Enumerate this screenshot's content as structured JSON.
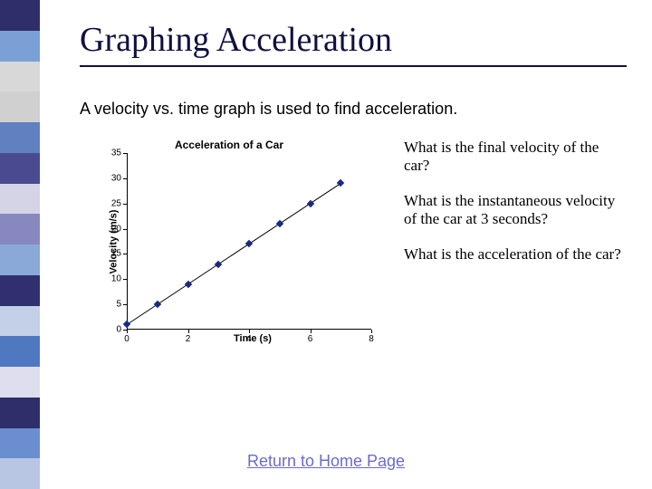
{
  "sidebar_colors": [
    "#2e2e6a",
    "#7aa0d6",
    "#d8d8d8",
    "#d0d0d0",
    "#6080c0",
    "#4a4a90",
    "#d4d4e6",
    "#8888c0",
    "#8aa8d8",
    "#303070",
    "#c4cfe8",
    "#5078c0",
    "#dedeee",
    "#2e2e6a",
    "#6a8ed0",
    "#b8c6e4"
  ],
  "title": "Graphing Acceleration",
  "subtitle": "A velocity vs. time graph is used to find acceleration.",
  "questions": [
    "What is the final velocity of the car?",
    "What is the instantaneous velocity of the car at 3 seconds?",
    "What is the acceleration of the car?"
  ],
  "home_link": "Return to Home Page",
  "chart": {
    "type": "scatter-line",
    "title": "Acceleration of a Car",
    "xlabel": "Time (s)",
    "ylabel": "Velocity (m/s)",
    "xlim": [
      0,
      8
    ],
    "ylim": [
      0,
      35
    ],
    "xticks": [
      0,
      2,
      4,
      6,
      8
    ],
    "yticks": [
      0,
      5,
      10,
      15,
      20,
      25,
      30,
      35
    ],
    "data_x": [
      0,
      1,
      2,
      3,
      4,
      5,
      6,
      7
    ],
    "data_y": [
      1,
      5,
      9,
      13,
      17,
      21,
      25,
      29
    ],
    "marker_color": "#1a2a80",
    "marker_style": "diamond",
    "marker_size": 6,
    "line_color": "#000000",
    "line_width": 1,
    "background_color": "#ffffff",
    "tick_font_size": 10,
    "label_font_size": 11,
    "title_font_size": 12
  }
}
